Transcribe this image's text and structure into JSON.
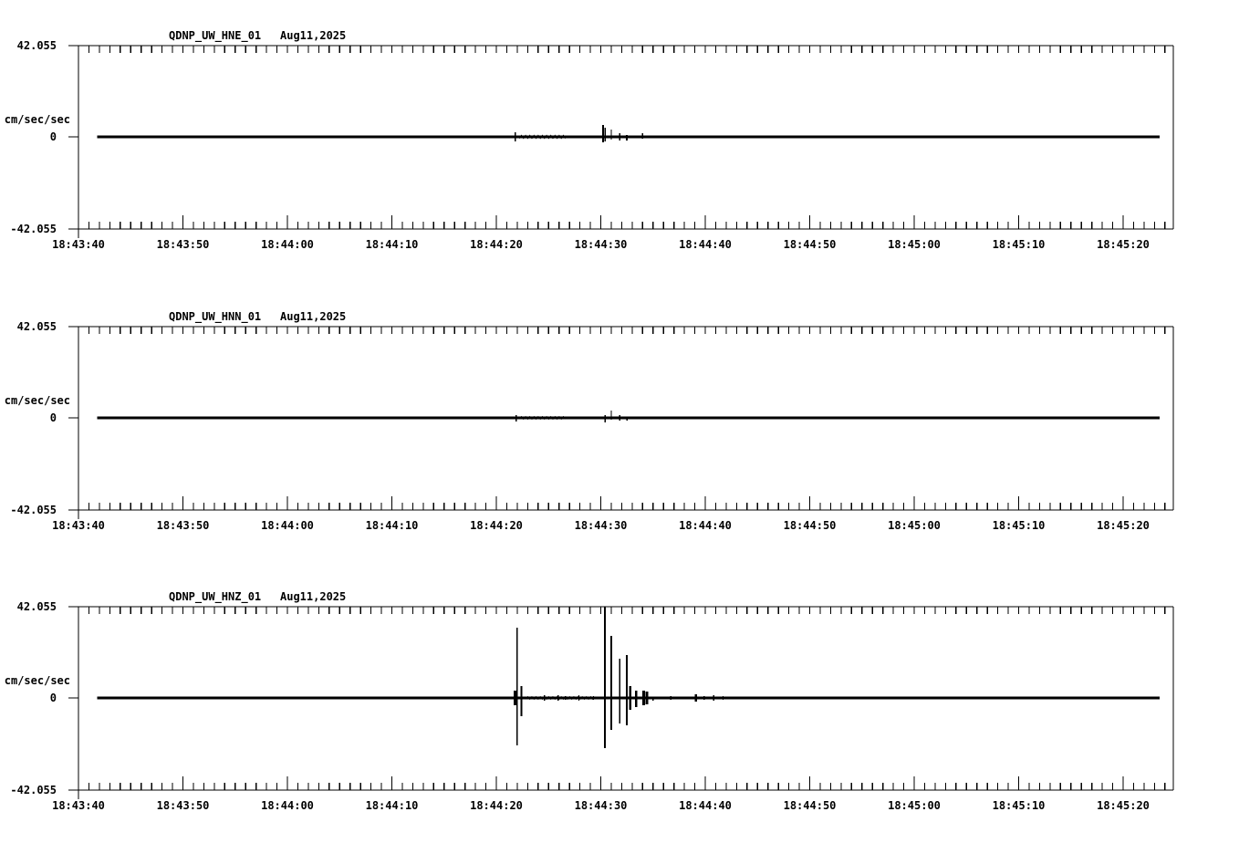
{
  "page": {
    "background_color": "#ffffff",
    "ink_color": "#000000",
    "description_date": "Aug11,2025"
  },
  "chart_data": [
    {
      "type": "line",
      "title": "QDNP_UW_HNE_01",
      "date_label": "Aug11,2025",
      "ylabel": "cm/sec/sec",
      "ytick_labels": [
        "42.055",
        "0",
        "-42.055"
      ],
      "ytick_values": [
        42.055,
        0,
        -42.055
      ],
      "ylim": [
        -42.055,
        42.055
      ],
      "x_axis_start": "18:43:40",
      "x_axis_span_seconds": 104.8,
      "minor_tick_seconds": 1,
      "major_tick_seconds": 10,
      "xtick_labels": [
        "18:43:40",
        "18:43:50",
        "18:44:00",
        "18:44:10",
        "18:44:20",
        "18:44:30",
        "18:44:40",
        "18:44:50",
        "18:45:00",
        "18:45:10",
        "18:45:20"
      ],
      "xtick_seconds": [
        0,
        10,
        20,
        30,
        40,
        50,
        60,
        70,
        80,
        90,
        100
      ],
      "grid": false,
      "legend": "none",
      "trace": {
        "baseline_value": 0,
        "start_s": 1.8,
        "end_s": 103.5,
        "noise_bands": [
          [
            42.2,
            46.8,
            0.7
          ]
        ],
        "spikes": [
          [
            41.8,
            2.1,
            2.1,
            1.4
          ],
          [
            50.2,
            5.5,
            2.5,
            2.0
          ],
          [
            50.4,
            4.2,
            2.1,
            1.4
          ],
          [
            51.0,
            3.4,
            1.3,
            1.4
          ],
          [
            51.8,
            1.7,
            1.7,
            1.4
          ],
          [
            52.5,
            0.9,
            1.7,
            2.0
          ],
          [
            54.0,
            1.7,
            0.9,
            1.4
          ]
        ]
      }
    },
    {
      "type": "line",
      "title": "QDNP_UW_HNN_01",
      "date_label": "Aug11,2025",
      "ylabel": "cm/sec/sec",
      "ytick_labels": [
        "42.055",
        "0",
        "-42.055"
      ],
      "ytick_values": [
        42.055,
        0,
        -42.055
      ],
      "ylim": [
        -42.055,
        42.055
      ],
      "x_axis_start": "18:43:40",
      "x_axis_span_seconds": 104.8,
      "minor_tick_seconds": 1,
      "major_tick_seconds": 10,
      "xtick_labels": [
        "18:43:40",
        "18:43:50",
        "18:44:00",
        "18:44:10",
        "18:44:20",
        "18:44:30",
        "18:44:40",
        "18:44:50",
        "18:45:00",
        "18:45:10",
        "18:45:20"
      ],
      "xtick_seconds": [
        0,
        10,
        20,
        30,
        40,
        50,
        60,
        70,
        80,
        90,
        100
      ],
      "grid": false,
      "legend": "none",
      "trace": {
        "baseline_value": 0,
        "start_s": 1.8,
        "end_s": 103.5,
        "noise_bands": [
          [
            42.2,
            46.8,
            0.55
          ]
        ],
        "spikes": [
          [
            41.9,
            1.3,
            1.7,
            1.4
          ],
          [
            50.4,
            1.3,
            2.1,
            1.4
          ],
          [
            51.0,
            3.4,
            0.9,
            1.4
          ],
          [
            51.8,
            1.3,
            1.3,
            1.4
          ],
          [
            52.5,
            0.5,
            1.3,
            1.4
          ]
        ]
      }
    },
    {
      "type": "line",
      "title": "QDNP_UW_HNZ_01",
      "date_label": "Aug11,2025",
      "ylabel": "cm/sec/sec",
      "ytick_labels": [
        "42.055",
        "0",
        "-42.055"
      ],
      "ytick_values": [
        42.055,
        0,
        -42.055
      ],
      "ylim": [
        -42.055,
        42.055
      ],
      "x_axis_start": "18:43:40",
      "x_axis_span_seconds": 104.8,
      "minor_tick_seconds": 1,
      "major_tick_seconds": 10,
      "xtick_labels": [
        "18:43:40",
        "18:43:50",
        "18:44:00",
        "18:44:10",
        "18:44:20",
        "18:44:30",
        "18:44:40",
        "18:44:50",
        "18:45:00",
        "18:45:10",
        "18:45:20"
      ],
      "xtick_seconds": [
        0,
        10,
        20,
        30,
        40,
        50,
        60,
        70,
        80,
        90,
        100
      ],
      "grid": false,
      "legend": "none",
      "trace": {
        "baseline_value": 0,
        "start_s": 1.8,
        "end_s": 103.5,
        "noise_bands": [
          [
            42.8,
            49.5,
            0.55
          ]
        ],
        "spikes": [
          [
            41.8,
            3.4,
            3.4,
            3.0
          ],
          [
            42.0,
            32.4,
            21.9,
            1.6
          ],
          [
            42.4,
            5.5,
            8.4,
            1.6
          ],
          [
            44.6,
            1.3,
            1.3,
            1.4
          ],
          [
            45.9,
            1.3,
            1.3,
            1.4
          ],
          [
            46.6,
            0.9,
            0.9,
            1.4
          ],
          [
            47.9,
            1.3,
            1.3,
            1.4
          ],
          [
            49.3,
            0.9,
            0.9,
            1.4
          ],
          [
            50.4,
            42.055,
            23.1,
            1.8
          ],
          [
            51.0,
            28.6,
            14.7,
            1.6
          ],
          [
            51.8,
            18.1,
            11.8,
            1.6
          ],
          [
            52.5,
            19.8,
            12.6,
            1.8
          ],
          [
            52.8,
            5.5,
            5.5,
            2.6
          ],
          [
            53.4,
            3.4,
            4.2,
            2.6
          ],
          [
            54.1,
            3.4,
            3.4,
            3.0
          ],
          [
            54.4,
            2.9,
            2.9,
            3.0
          ],
          [
            55.0,
            0.4,
            1.3,
            1.4
          ],
          [
            56.7,
            0.9,
            0.9,
            1.4
          ],
          [
            59.1,
            1.7,
            1.7,
            2.6
          ],
          [
            59.9,
            0.9,
            0.9,
            1.4
          ],
          [
            60.8,
            1.3,
            1.3,
            1.4
          ],
          [
            61.7,
            0.9,
            0.9,
            1.4
          ],
          [
            62.5,
            0.4,
            0.6,
            1.4
          ]
        ]
      }
    }
  ]
}
